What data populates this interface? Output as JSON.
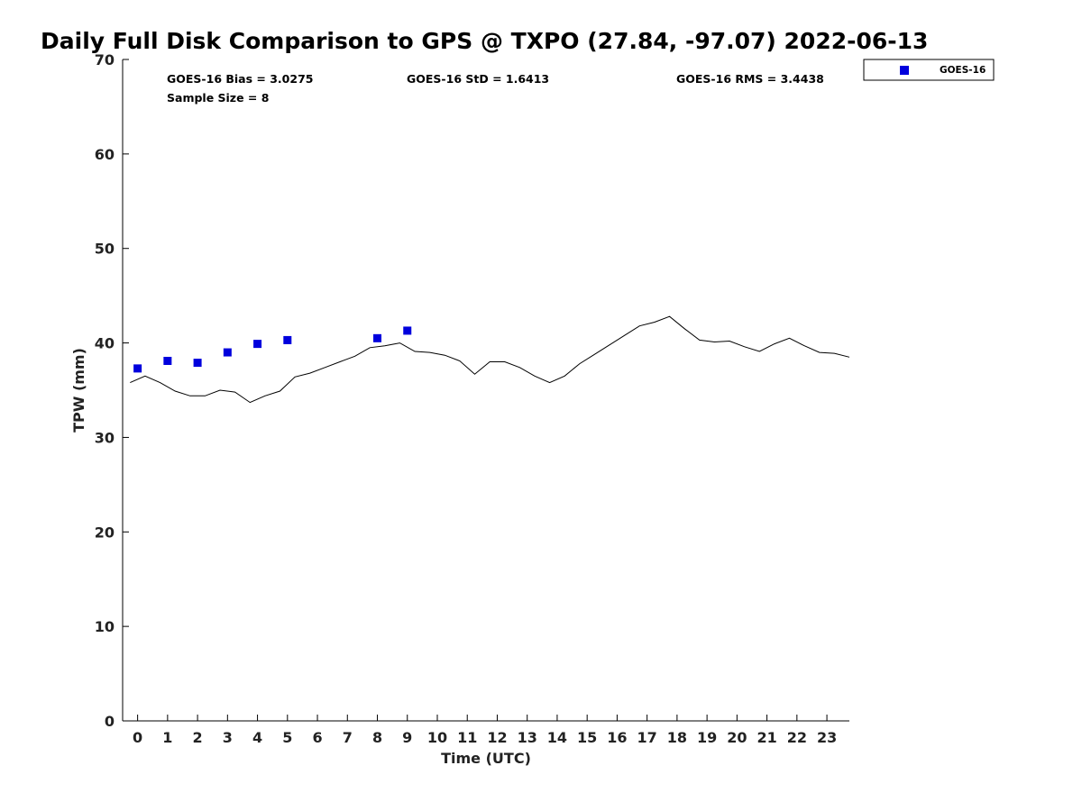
{
  "chart_data": {
    "type": "scatter",
    "title": "Daily Full Disk Comparison to GPS @ TXPO (27.84, -97.07) 2022-06-13",
    "xlabel": "Time (UTC)",
    "ylabel": "TPW (mm)",
    "xlim": [
      -0.5,
      23.75
    ],
    "ylim": [
      0,
      70
    ],
    "x_ticks": [
      "0",
      "1",
      "2",
      "3",
      "4",
      "5",
      "6",
      "7",
      "8",
      "9",
      "10",
      "11",
      "12",
      "13",
      "14",
      "15",
      "16",
      "17",
      "18",
      "19",
      "20",
      "21",
      "22",
      "23"
    ],
    "y_ticks": [
      "0",
      "10",
      "20",
      "30",
      "40",
      "50",
      "60",
      "70"
    ],
    "grid": false,
    "legend_position": "top-right, outside plot",
    "stats": {
      "bias": "GOES-16 Bias = 3.0275",
      "std": "GOES-16 StD = 1.6413",
      "rms": "GOES-16 RMS = 3.4438",
      "sample_size": "Sample Size = 8"
    },
    "series": [
      {
        "name": "GOES-16",
        "style": "markers",
        "color": "#0000dd",
        "x": [
          0,
          1,
          2,
          3,
          4,
          5,
          8,
          9
        ],
        "y": [
          37.3,
          38.1,
          37.9,
          39.0,
          39.9,
          40.3,
          40.5,
          41.3
        ]
      },
      {
        "style": "line",
        "color": "#000000",
        "x": [
          -0.25,
          0.25,
          0.75,
          1.25,
          1.75,
          2.25,
          2.75,
          3.25,
          3.75,
          4.25,
          4.75,
          5.25,
          5.75,
          6.25,
          6.75,
          7.25,
          7.75,
          8.25,
          8.75,
          9.25,
          9.75,
          10.25,
          10.75,
          11.25,
          11.75,
          12.25,
          12.75,
          13.25,
          13.75,
          14.25,
          14.75,
          15.25,
          15.75,
          16.25,
          16.75,
          17.25,
          17.75,
          18.25,
          18.75,
          19.25,
          19.75,
          20.25,
          20.75,
          21.25,
          21.75,
          22.25,
          22.75,
          23.25,
          23.75
        ],
        "y": [
          35.8,
          36.5,
          35.8,
          34.9,
          34.4,
          34.4,
          35.0,
          34.8,
          33.7,
          34.4,
          34.9,
          36.4,
          36.8,
          37.4,
          38.0,
          38.6,
          39.5,
          39.7,
          40.0,
          39.1,
          39.0,
          38.7,
          38.1,
          36.7,
          38.0,
          38.0,
          37.4,
          36.5,
          35.8,
          36.5,
          37.8,
          38.8,
          39.8,
          40.8,
          41.8,
          42.2,
          42.8,
          41.5,
          40.3,
          40.1,
          40.2,
          39.6,
          39.1,
          39.9,
          40.5,
          39.7,
          39.0,
          38.9,
          38.5
        ]
      }
    ]
  }
}
